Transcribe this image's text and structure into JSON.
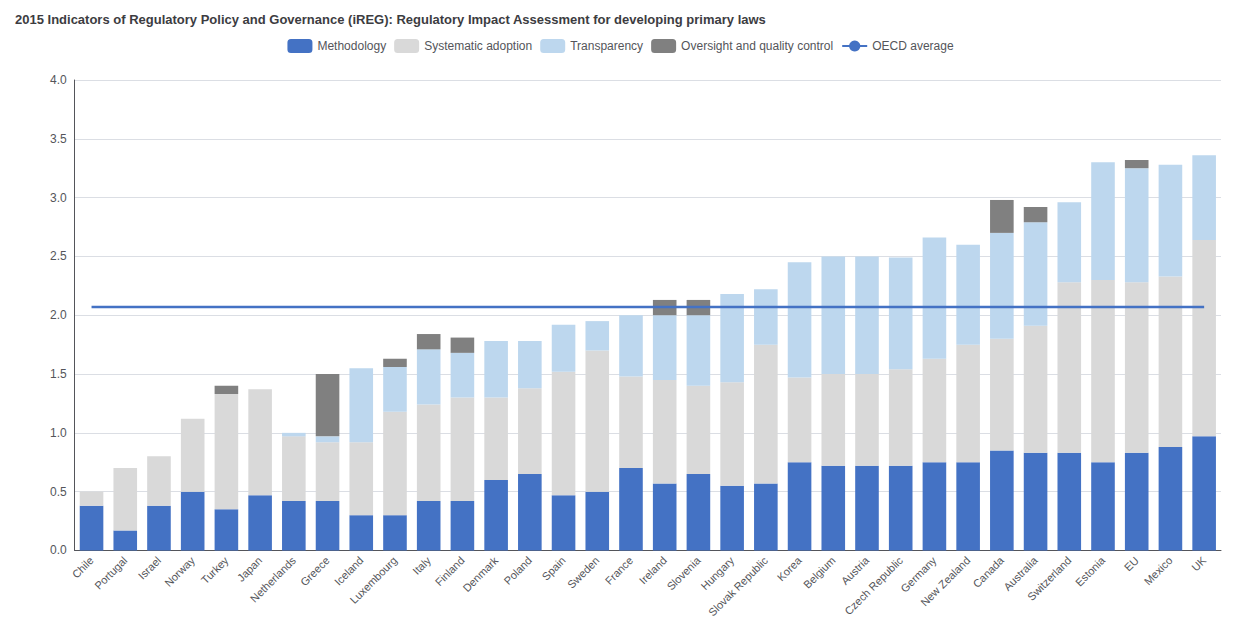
{
  "chart_data": {
    "type": "bar",
    "title": "2015 Indicators of Regulatory Policy and Governance (iREG): Regulatory Impact Assessment for developing primary laws",
    "categories": [
      "Chile",
      "Portugal",
      "Israel",
      "Norway",
      "Turkey",
      "Japan",
      "Netherlands",
      "Greece",
      "Iceland",
      "Luxembourg",
      "Italy",
      "Finland",
      "Denmark",
      "Poland",
      "Spain",
      "Sweden",
      "France",
      "Ireland",
      "Slovenia",
      "Hungary",
      "Slovak Republic",
      "Korea",
      "Belgium",
      "Austria",
      "Czech Republic",
      "Germany",
      "New Zealand",
      "Canada",
      "Australia",
      "Switzerland",
      "Estonia",
      "EU",
      "Mexico",
      "UK"
    ],
    "stacked": true,
    "series": [
      {
        "name": "Methodology",
        "type": "bar",
        "color": "#4472C4",
        "values": [
          0.38,
          0.17,
          0.38,
          0.5,
          0.35,
          0.47,
          0.42,
          0.42,
          0.3,
          0.3,
          0.42,
          0.42,
          0.6,
          0.65,
          0.47,
          0.5,
          0.7,
          0.57,
          0.65,
          0.55,
          0.57,
          0.75,
          0.72,
          0.72,
          0.72,
          0.75,
          0.75,
          0.85,
          0.83,
          0.83,
          0.75,
          0.83,
          0.88,
          0.97
        ]
      },
      {
        "name": "Systematic adoption",
        "type": "bar",
        "color": "#D9D9D9",
        "values": [
          0.12,
          0.53,
          0.42,
          0.62,
          0.98,
          0.9,
          0.55,
          0.5,
          0.62,
          0.88,
          0.82,
          0.88,
          0.7,
          0.73,
          1.05,
          1.2,
          0.78,
          0.88,
          0.75,
          0.88,
          1.18,
          0.72,
          0.78,
          0.78,
          0.82,
          0.88,
          1.0,
          0.95,
          1.08,
          1.45,
          1.55,
          1.45,
          1.45,
          1.67
        ]
      },
      {
        "name": "Transparency",
        "type": "bar",
        "color": "#BDD7EE",
        "values": [
          0.0,
          0.0,
          0.0,
          0.0,
          0.0,
          0.0,
          0.03,
          0.05,
          0.63,
          0.38,
          0.47,
          0.38,
          0.48,
          0.4,
          0.4,
          0.25,
          0.52,
          0.55,
          0.6,
          0.75,
          0.47,
          0.98,
          1.0,
          1.0,
          0.95,
          1.03,
          0.85,
          0.9,
          0.88,
          0.68,
          1.0,
          0.97,
          0.95,
          0.72
        ]
      },
      {
        "name": "Oversight and quality control",
        "type": "bar",
        "color": "#808080",
        "values": [
          0.0,
          0.0,
          0.0,
          0.0,
          0.07,
          0.0,
          0.0,
          0.53,
          0.0,
          0.07,
          0.13,
          0.13,
          0.0,
          0.0,
          0.0,
          0.0,
          0.0,
          0.13,
          0.13,
          0.0,
          0.0,
          0.0,
          0.0,
          0.0,
          0.0,
          0.0,
          0.0,
          0.28,
          0.13,
          0.0,
          0.0,
          0.07,
          0.0,
          0.0
        ]
      },
      {
        "name": "OECD average",
        "type": "line",
        "color": "#4472C4",
        "values": [
          2.07,
          2.07,
          2.07,
          2.07,
          2.07,
          2.07,
          2.07,
          2.07,
          2.07,
          2.07,
          2.07,
          2.07,
          2.07,
          2.07,
          2.07,
          2.07,
          2.07,
          2.07,
          2.07,
          2.07,
          2.07,
          2.07,
          2.07,
          2.07,
          2.07,
          2.07,
          2.07,
          2.07,
          2.07,
          2.07,
          2.07,
          2.07,
          2.07,
          2.07
        ]
      }
    ],
    "ylim": [
      0,
      4
    ],
    "yticks": [
      {
        "value": 0,
        "label": "0.0"
      },
      0.5,
      {
        "value": 1,
        "label": "1.0"
      },
      1.5,
      {
        "value": 2,
        "label": "2.0"
      },
      2.5,
      {
        "value": 3,
        "label": "3.0"
      },
      3.5,
      {
        "value": 4,
        "label": "4.0"
      }
    ],
    "grid": true,
    "legend": "top"
  }
}
